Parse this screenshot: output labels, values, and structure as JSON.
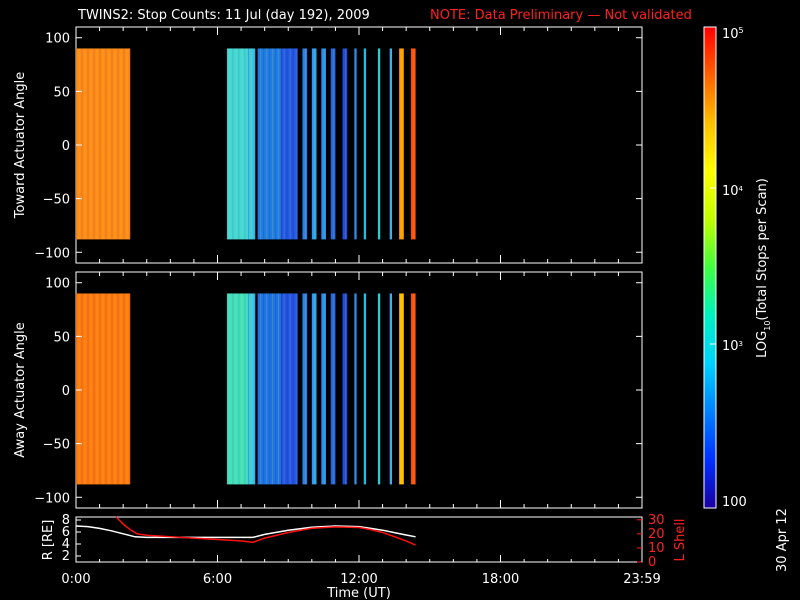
{
  "header": {
    "title": "TWINS2: Stop Counts: 11 Jul (day 192), 2009",
    "note": "NOTE: Data Preliminary — Not validated"
  },
  "side_stamp": "30 Apr 12",
  "chart_data": [
    {
      "type": "heatmap",
      "name": "toward-panel",
      "ylabel": "Toward Actuator Angle",
      "ylim": [
        -110,
        110
      ],
      "yticks": [
        "100",
        "50",
        "0",
        "−50",
        "−100"
      ],
      "xlim_hours": [
        0,
        24
      ],
      "angle_range": [
        -88,
        90
      ],
      "scan_segments_hours": [
        [
          0.0,
          2.3,
          "#ff8a1a"
        ],
        [
          6.4,
          7.3,
          "#42d8d8"
        ],
        [
          7.3,
          7.6,
          "#3ac8e8"
        ],
        [
          7.7,
          8.7,
          "#1e7ce6"
        ],
        [
          8.7,
          9.4,
          "#2058e8"
        ],
        [
          9.6,
          9.8,
          "#2a7ef0"
        ],
        [
          10.0,
          10.2,
          "#2ea0f0"
        ],
        [
          10.4,
          10.6,
          "#2890f0"
        ],
        [
          10.8,
          11.0,
          "#2268e8"
        ],
        [
          11.3,
          11.5,
          "#1c4ce0"
        ],
        [
          11.8,
          11.9,
          "#2a90e8"
        ],
        [
          12.2,
          12.3,
          "#20c0e0"
        ],
        [
          12.8,
          12.9,
          "#30d0d0"
        ],
        [
          13.3,
          13.4,
          "#40b0f0"
        ],
        [
          13.7,
          13.9,
          "#ffa000"
        ],
        [
          14.2,
          14.4,
          "#ff5010"
        ]
      ]
    },
    {
      "type": "heatmap",
      "name": "away-panel",
      "ylabel": "Away Actuator Angle",
      "ylim": [
        -110,
        110
      ],
      "yticks": [
        "100",
        "50",
        "0",
        "−50",
        "−100"
      ],
      "xlim_hours": [
        0,
        24
      ],
      "angle_range": [
        -88,
        90
      ],
      "scan_segments_hours": [
        [
          0.0,
          2.3,
          "#ff7a12"
        ],
        [
          6.4,
          7.3,
          "#40e0c0"
        ],
        [
          7.3,
          7.6,
          "#38c8e8"
        ],
        [
          7.7,
          8.7,
          "#1e74e6"
        ],
        [
          8.7,
          9.4,
          "#2054e8"
        ],
        [
          9.6,
          9.8,
          "#2a7ef0"
        ],
        [
          10.0,
          10.2,
          "#2ea0f0"
        ],
        [
          10.4,
          10.6,
          "#2890f0"
        ],
        [
          10.8,
          11.0,
          "#2268e8"
        ],
        [
          11.3,
          11.5,
          "#1c4ce0"
        ],
        [
          11.8,
          11.9,
          "#2a90e8"
        ],
        [
          12.2,
          12.3,
          "#20c0e0"
        ],
        [
          12.8,
          12.9,
          "#30d0d0"
        ],
        [
          13.3,
          13.4,
          "#40b0f0"
        ],
        [
          13.7,
          13.9,
          "#ffc000"
        ],
        [
          14.2,
          14.4,
          "#ff5010"
        ]
      ]
    },
    {
      "type": "line",
      "name": "orbit-panel",
      "ylabel": "R [RE]",
      "y2label": "L Shell",
      "ylim": [
        1,
        8.5
      ],
      "y2lim": [
        0,
        32
      ],
      "yticks": [
        8,
        6,
        4,
        2
      ],
      "y2ticks": [
        30,
        20,
        10,
        0
      ],
      "xlabel": "Time (UT)",
      "xticks": [
        "0:00",
        "6:00",
        "12:00",
        "18:00",
        "23:59"
      ],
      "xtick_hours": [
        0,
        6,
        12,
        18,
        24
      ],
      "series": [
        {
          "axis": "left",
          "color": "#ffffff",
          "x": [
            0,
            0.5,
            1.0,
            1.5,
            2.0,
            2.5,
            3.0,
            4,
            5,
            6,
            7,
            7.5,
            8,
            9,
            10,
            11,
            12,
            12.5,
            13,
            13.5,
            14,
            14.4
          ],
          "y": [
            7.0,
            6.9,
            6.6,
            6.2,
            5.7,
            5.2,
            5.1,
            5.1,
            5.1,
            5.1,
            5.1,
            5.1,
            5.6,
            6.3,
            6.8,
            7.0,
            6.9,
            6.6,
            6.3,
            5.9,
            5.5,
            5.2
          ]
        },
        {
          "axis": "right",
          "color": "#ff1010",
          "x": [
            1.7,
            2.0,
            2.3,
            2.6,
            3.0,
            4,
            5,
            6,
            7,
            7.5,
            8,
            9,
            10,
            11,
            12,
            12.5,
            13,
            13.5,
            14,
            14.4
          ],
          "y": [
            32,
            27,
            23,
            20,
            19,
            18,
            17,
            16,
            15,
            14,
            17,
            21,
            24,
            25,
            24.5,
            23,
            21,
            18,
            15,
            12
          ]
        }
      ]
    }
  ],
  "colorbar": {
    "label_prefix": "LOG",
    "label_sub": "10",
    "label_rest": "(Total Stops per Scan)",
    "tick_top_base": "10",
    "tick_top_exp": "5",
    "tick_mid_base": "10",
    "tick_mid_exp": "4",
    "tick_low_base": "10",
    "tick_low_exp": "3",
    "tick_bottom": "100",
    "stops": [
      "#1a00a0",
      "#0030ff",
      "#0080ff",
      "#00d0ff",
      "#00f0c0",
      "#40ff40",
      "#c0ff00",
      "#ffff00",
      "#ffc000",
      "#ff6000",
      "#ff0000"
    ]
  }
}
